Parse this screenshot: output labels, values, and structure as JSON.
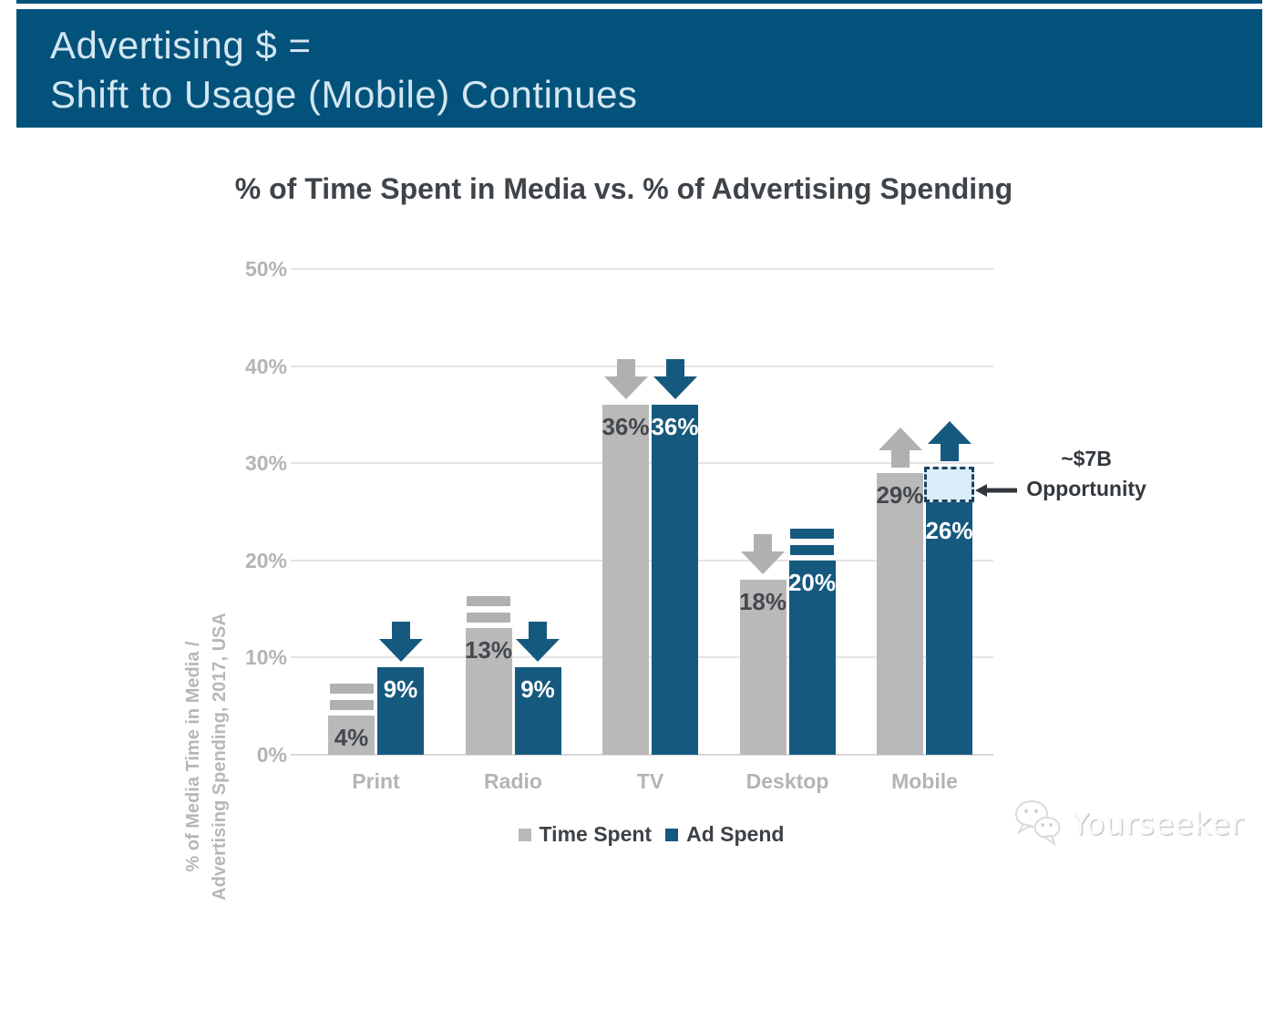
{
  "slide_header": {
    "line1": "Advertising $ =",
    "line2": "Shift to Usage (Mobile) Continues"
  },
  "watermark": {
    "label": "Yourseeker",
    "icon": "wechat-bubbles-icon"
  },
  "colors": {
    "banner": "#03527b",
    "banner_text": "#d3e6f1",
    "title_text": "#3f444a",
    "axis_text": "#b4b4b7",
    "gridline": "#e4e4e4",
    "time_spent_gray": "#b9b9b9",
    "ad_spend_blue": "#16597f",
    "indicator_gray": "#b0b0b0",
    "opportunity_fill": "#d9ecf8",
    "opportunity_border": "#1e4060"
  },
  "chart_data": {
    "type": "bar",
    "title": "% of Time Spent in Media vs. % of Advertising Spending",
    "ylabel_lines": [
      "% of Media Time in Media /",
      "Advertising Spending, 2017, USA"
    ],
    "categories": [
      "Print",
      "Radio",
      "TV",
      "Desktop",
      "Mobile"
    ],
    "series": [
      {
        "name": "Time Spent",
        "color": "#b9b9b9",
        "label_color": "#45494e",
        "values": [
          4,
          13,
          36,
          18,
          29
        ],
        "value_labels": [
          "4%",
          "13%",
          "36%",
          "18%",
          "29%"
        ],
        "trend": [
          "equals",
          "equals",
          "down",
          "down",
          "up"
        ],
        "trend_color": "#b0b0b0"
      },
      {
        "name": "Ad Spend",
        "color": "#16597f",
        "label_color": "#ffffff",
        "values": [
          9,
          9,
          36,
          20,
          26
        ],
        "value_labels": [
          "9%",
          "9%",
          "36%",
          "20%",
          "26%"
        ],
        "trend": [
          "down",
          "down",
          "down",
          "equals",
          "up"
        ],
        "trend_color": "#16597f"
      }
    ],
    "ylim": [
      0,
      50
    ],
    "yticks": [
      "0%",
      "10%",
      "20%",
      "30%",
      "40%",
      "50%"
    ],
    "grid": true,
    "legend": [
      "Time Spent",
      "Ad Spend"
    ],
    "legend_position": "bottom",
    "annotation": {
      "line1": "~$7B",
      "line2": "Opportunity",
      "arrow": "left",
      "points_to": "opportunity_box"
    },
    "opportunity_box": {
      "category": "Mobile",
      "series": "Ad Spend",
      "from": 26,
      "to": 29.6
    }
  }
}
